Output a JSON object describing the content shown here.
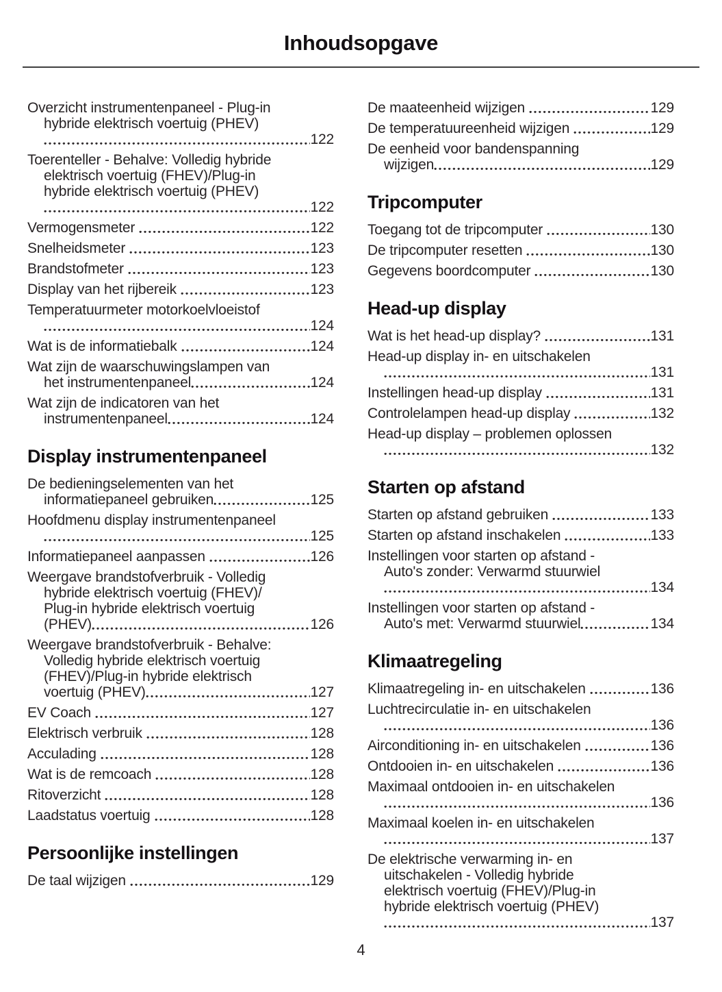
{
  "page": {
    "title": "Inhoudsopgave",
    "page_number": "4"
  },
  "colors": {
    "text": "#272325",
    "heading": "#141114",
    "rule": "#3f3f3f",
    "background": "#ffffff"
  },
  "toc": {
    "left": {
      "sections": [
        {
          "heading": "",
          "entries": [
            {
              "title": "Overzicht instrumentenpaneel - Plug-in hybride elektrisch voertuig (PHEV)",
              "page": "122",
              "dots_new_line": true,
              "lines": [
                "Overzicht instrumentenpaneel - Plug-in",
                "hybride elektrisch voertuig (PHEV)"
              ]
            },
            {
              "title": "Toerenteller - Behalve: Volledig hybride elektrisch voertuig (FHEV)/Plug-in hybride elektrisch voertuig (PHEV)",
              "page": "122",
              "dots_new_line": true,
              "lines": [
                "Toerenteller - Behalve: Volledig hybride",
                "elektrisch voertuig (FHEV)/Plug-in",
                "hybride elektrisch voertuig (PHEV)"
              ]
            },
            {
              "title": "Vermogensmeter",
              "page": "122",
              "dots_new_line": false,
              "lines": [
                "Vermogensmeter"
              ]
            },
            {
              "title": "Snelheidsmeter",
              "page": "123",
              "dots_new_line": false,
              "lines": [
                "Snelheidsmeter"
              ]
            },
            {
              "title": "Brandstofmeter",
              "page": "123",
              "dots_new_line": false,
              "lines": [
                "Brandstofmeter"
              ]
            },
            {
              "title": "Display van het rijbereik",
              "page": "123",
              "dots_new_line": false,
              "lines": [
                "Display van het rijbereik"
              ]
            },
            {
              "title": "Temperatuurmeter motorkoelvloeistof",
              "page": "124",
              "dots_new_line": true,
              "lines": [
                "Temperatuurmeter motorkoelvloeistof"
              ]
            },
            {
              "title": "Wat is de informatiebalk",
              "page": "124",
              "dots_new_line": false,
              "lines": [
                "Wat is de informatiebalk"
              ]
            },
            {
              "title": "Wat zijn de waarschuwingslampen van het instrumentenpaneel",
              "page": "124",
              "dots_new_line": false,
              "lines": [
                "Wat zijn de waarschuwingslampen van",
                "het instrumentenpaneel"
              ]
            },
            {
              "title": "Wat zijn de indicatoren van het instrumentenpaneel",
              "page": "124",
              "dots_new_line": false,
              "lines": [
                "Wat zijn de indicatoren van het",
                "instrumentenpaneel"
              ]
            }
          ]
        },
        {
          "heading": "Display instrumentenpaneel",
          "entries": [
            {
              "title": "De bedieningselementen van het informatiepaneel gebruiken",
              "page": "125",
              "dots_new_line": false,
              "lines": [
                "De bedieningselementen van het",
                "informatiepaneel gebruiken"
              ]
            },
            {
              "title": "Hoofdmenu display instrumentenpaneel",
              "page": "125",
              "dots_new_line": true,
              "lines": [
                "Hoofdmenu display instrumentenpaneel"
              ]
            },
            {
              "title": "Informatiepaneel aanpassen",
              "page": "126",
              "dots_new_line": false,
              "lines": [
                "Informatiepaneel aanpassen"
              ]
            },
            {
              "title": "Weergave brandstofverbruik - Volledig hybride elektrisch voertuig (FHEV)/Plug-in hybride elektrisch voertuig (PHEV)",
              "page": "126",
              "dots_new_line": false,
              "lines": [
                "Weergave brandstofverbruik - Volledig",
                "hybride elektrisch voertuig (FHEV)/",
                "Plug-in hybride elektrisch voertuig",
                "(PHEV)"
              ]
            },
            {
              "title": "Weergave brandstofverbruik - Behalve: Volledig hybride elektrisch voertuig (FHEV)/Plug-in hybride elektrisch voertuig (PHEV)",
              "page": "127",
              "dots_new_line": false,
              "lines": [
                "Weergave brandstofverbruik - Behalve:",
                "Volledig hybride elektrisch voertuig",
                "(FHEV)/Plug-in hybride elektrisch",
                "voertuig (PHEV)"
              ]
            },
            {
              "title": "EV Coach",
              "page": "127",
              "dots_new_line": false,
              "lines": [
                "EV Coach"
              ]
            },
            {
              "title": "Elektrisch verbruik",
              "page": "128",
              "dots_new_line": false,
              "lines": [
                "Elektrisch verbruik"
              ]
            },
            {
              "title": "Acculading",
              "page": "128",
              "dots_new_line": false,
              "lines": [
                "Acculading"
              ]
            },
            {
              "title": "Wat is de remcoach",
              "page": "128",
              "dots_new_line": false,
              "lines": [
                "Wat is de remcoach"
              ]
            },
            {
              "title": "Ritoverzicht",
              "page": "128",
              "dots_new_line": false,
              "lines": [
                "Ritoverzicht"
              ]
            },
            {
              "title": "Laadstatus voertuig",
              "page": "128",
              "dots_new_line": false,
              "lines": [
                "Laadstatus voertuig"
              ]
            }
          ]
        },
        {
          "heading": "Persoonlijke instellingen",
          "entries": [
            {
              "title": "De taal wijzigen",
              "page": "129",
              "dots_new_line": false,
              "lines": [
                "De taal wijzigen"
              ]
            }
          ]
        }
      ]
    },
    "right": {
      "sections": [
        {
          "heading": "",
          "entries": [
            {
              "title": "De maateenheid wijzigen",
              "page": "129",
              "dots_new_line": false,
              "lines": [
                "De maateenheid wijzigen"
              ]
            },
            {
              "title": "De temperatuureenheid wijzigen",
              "page": "129",
              "dots_new_line": false,
              "lines": [
                "De temperatuureenheid wijzigen"
              ]
            },
            {
              "title": "De eenheid voor bandenspanning wijzigen",
              "page": "129",
              "dots_new_line": false,
              "lines": [
                "De eenheid voor bandenspanning",
                "wijzigen"
              ]
            }
          ]
        },
        {
          "heading": "Tripcomputer",
          "entries": [
            {
              "title": "Toegang tot de tripcomputer",
              "page": "130",
              "dots_new_line": false,
              "lines": [
                "Toegang tot de tripcomputer"
              ]
            },
            {
              "title": "De tripcomputer resetten",
              "page": "130",
              "dots_new_line": false,
              "lines": [
                "De tripcomputer resetten"
              ]
            },
            {
              "title": "Gegevens boordcomputer",
              "page": "130",
              "dots_new_line": false,
              "lines": [
                "Gegevens boordcomputer"
              ]
            }
          ]
        },
        {
          "heading": "Head-up display",
          "entries": [
            {
              "title": "Wat is het head-up display?",
              "page": "131",
              "dots_new_line": false,
              "lines": [
                "Wat is het head-up display?"
              ]
            },
            {
              "title": "Head-up display in- en uitschakelen",
              "page": "131",
              "dots_new_line": true,
              "lines": [
                "Head-up display in- en uitschakelen"
              ]
            },
            {
              "title": "Instellingen head-up display",
              "page": "131",
              "dots_new_line": false,
              "lines": [
                "Instellingen head-up display"
              ]
            },
            {
              "title": "Controlelampen head-up display",
              "page": "132",
              "dots_new_line": false,
              "lines": [
                "Controlelampen head-up display"
              ]
            },
            {
              "title": "Head-up display – problemen oplossen",
              "page": "132",
              "dots_new_line": true,
              "lines": [
                "Head-up display – problemen oplossen"
              ]
            }
          ]
        },
        {
          "heading": "Starten op afstand",
          "entries": [
            {
              "title": "Starten op afstand gebruiken",
              "page": "133",
              "dots_new_line": false,
              "lines": [
                "Starten op afstand gebruiken"
              ]
            },
            {
              "title": "Starten op afstand inschakelen",
              "page": "133",
              "dots_new_line": false,
              "lines": [
                "Starten op afstand inschakelen"
              ]
            },
            {
              "title": "Instellingen voor starten op afstand - Auto's zonder: Verwarmd stuurwiel",
              "page": "134",
              "dots_new_line": true,
              "lines": [
                "Instellingen voor starten op afstand -",
                "Auto's zonder: Verwarmd stuurwiel"
              ]
            },
            {
              "title": "Instellingen voor starten op afstand - Auto's met: Verwarmd stuurwiel",
              "page": "134",
              "dots_new_line": false,
              "lines": [
                "Instellingen voor starten op afstand -",
                "Auto's met: Verwarmd stuurwiel"
              ]
            }
          ]
        },
        {
          "heading": "Klimaatregeling",
          "entries": [
            {
              "title": "Klimaatregeling in- en uitschakelen",
              "page": "136",
              "dots_new_line": false,
              "lines": [
                "Klimaatregeling in- en uitschakelen"
              ]
            },
            {
              "title": "Luchtrecirculatie in- en uitschakelen",
              "page": "136",
              "dots_new_line": true,
              "lines": [
                "Luchtrecirculatie in- en uitschakelen"
              ]
            },
            {
              "title": "Airconditioning in- en uitschakelen",
              "page": "136",
              "dots_new_line": false,
              "lines": [
                "Airconditioning in- en uitschakelen"
              ]
            },
            {
              "title": "Ontdooien in- en uitschakelen",
              "page": "136",
              "dots_new_line": false,
              "lines": [
                "Ontdooien in- en uitschakelen"
              ]
            },
            {
              "title": "Maximaal ontdooien in- en uitschakelen",
              "page": "136",
              "dots_new_line": true,
              "lines": [
                "Maximaal ontdooien in- en uitschakelen"
              ]
            },
            {
              "title": "Maximaal koelen in- en uitschakelen",
              "page": "137",
              "dots_new_line": true,
              "lines": [
                "Maximaal koelen in- en uitschakelen"
              ]
            },
            {
              "title": "De elektrische verwarming in- en uitschakelen - Volledig hybride elektrisch voertuig (FHEV)/Plug-in hybride elektrisch voertuig (PHEV)",
              "page": "137",
              "dots_new_line": true,
              "lines": [
                "De elektrische verwarming in- en",
                "uitschakelen - Volledig hybride",
                "elektrisch voertuig (FHEV)/Plug-in",
                "hybride elektrisch voertuig (PHEV)"
              ]
            }
          ]
        }
      ]
    }
  }
}
